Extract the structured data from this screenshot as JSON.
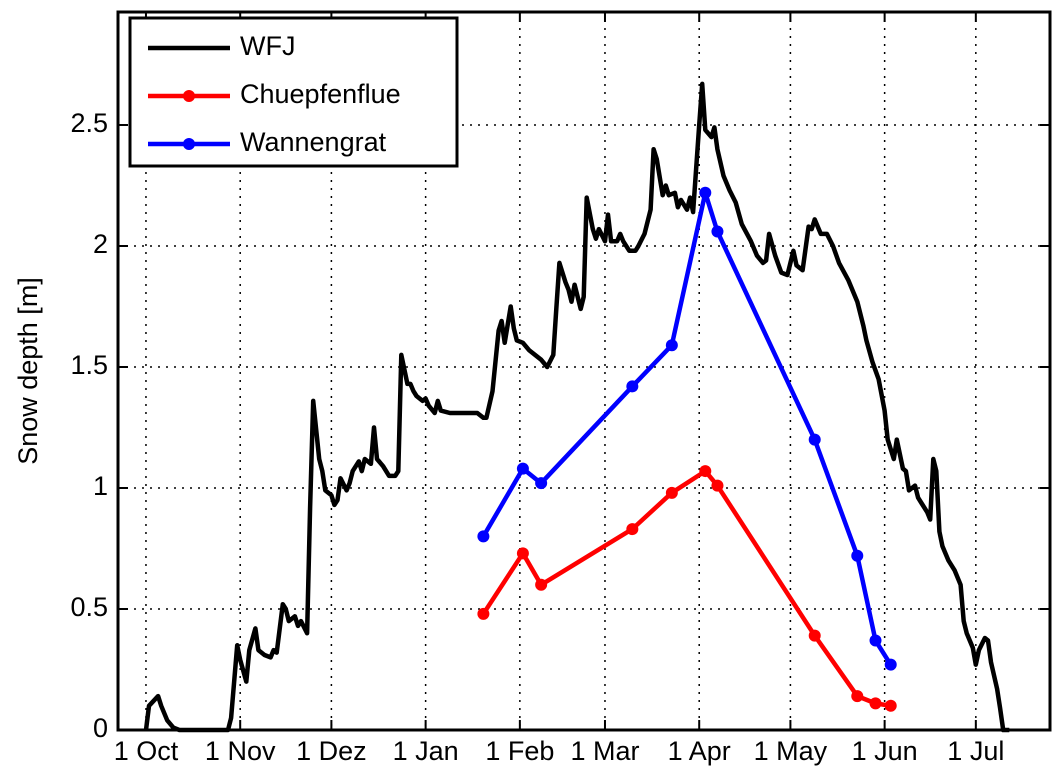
{
  "chart_data": {
    "type": "line",
    "y_label": "Snow depth [m]",
    "xlim": [
      -9.2,
      297.4
    ],
    "xticks": [
      {
        "value": 0,
        "label": "1 Oct"
      },
      {
        "value": 31,
        "label": "1 Nov"
      },
      {
        "value": 61,
        "label": "1 Dez"
      },
      {
        "value": 92,
        "label": "1 Jan"
      },
      {
        "value": 123,
        "label": "1 Feb"
      },
      {
        "value": 151,
        "label": "1 Mar"
      },
      {
        "value": 182,
        "label": "1 Apr"
      },
      {
        "value": 212,
        "label": "1 May"
      },
      {
        "value": 243,
        "label": "1 Jun"
      },
      {
        "value": 273,
        "label": "1 Jul"
      }
    ],
    "ylim": [
      0,
      2.967
    ],
    "yticks": [
      0,
      0.5,
      1,
      1.5,
      2,
      2.5
    ],
    "grid": true,
    "legend": "upper left",
    "series": [
      {
        "name": "WFJ",
        "color": "#000000",
        "markers": false,
        "x": [
          0,
          1,
          4,
          5,
          7,
          9,
          11,
          27,
          28,
          30,
          31,
          33,
          34,
          36,
          37,
          39,
          41,
          42,
          43,
          45,
          46,
          47,
          49,
          50,
          51,
          53,
          54,
          55,
          57,
          58,
          59,
          61,
          62,
          63,
          64,
          66,
          67,
          68,
          70,
          71,
          72,
          74,
          75,
          76,
          78,
          79,
          80,
          82,
          83,
          84,
          86,
          87,
          88,
          89,
          91,
          92,
          93,
          95,
          96,
          97,
          100,
          103,
          107,
          109,
          111,
          112,
          114,
          116,
          117,
          118,
          120,
          121,
          122,
          124,
          126,
          130,
          132,
          134,
          135,
          136,
          138,
          139,
          140,
          141,
          143,
          144,
          145,
          147,
          148,
          149,
          151,
          152,
          153,
          155,
          156,
          157,
          159,
          161,
          162,
          164,
          166,
          167,
          168,
          170,
          171,
          172,
          174,
          175,
          176,
          178,
          179,
          180,
          182,
          183,
          184,
          186,
          187,
          188,
          190,
          192,
          194,
          196,
          199,
          201,
          203,
          204,
          205,
          207,
          209,
          211,
          212,
          213,
          214,
          216,
          218,
          219,
          220,
          222,
          224,
          226,
          228,
          231,
          234,
          236,
          237,
          239,
          241,
          243,
          244,
          246,
          247,
          249,
          250,
          251,
          253,
          254,
          255,
          257,
          258,
          259,
          260,
          261,
          262,
          264,
          266,
          268,
          269,
          270,
          272,
          273,
          274,
          276,
          277,
          278,
          280,
          281,
          282,
          284,
          290,
          291
        ],
        "values": [
          0,
          0.1,
          0.14,
          0.1,
          0.04,
          0.01,
          0,
          0,
          0.05,
          0.35,
          0.29,
          0.2,
          0.33,
          0.42,
          0.33,
          0.31,
          0.3,
          0.33,
          0.32,
          0.52,
          0.5,
          0.45,
          0.47,
          0.43,
          0.45,
          0.4,
          0.92,
          1.36,
          1.12,
          1.07,
          0.99,
          0.97,
          0.93,
          0.95,
          1.04,
          0.99,
          1.02,
          1.07,
          1.11,
          1.07,
          1.12,
          1.1,
          1.25,
          1.12,
          1.09,
          1.07,
          1.05,
          1.05,
          1.07,
          1.55,
          1.43,
          1.43,
          1.4,
          1.38,
          1.36,
          1.37,
          1.34,
          1.31,
          1.36,
          1.32,
          1.31,
          1.31,
          1.31,
          1.31,
          1.29,
          1.29,
          1.4,
          1.65,
          1.69,
          1.6,
          1.75,
          1.66,
          1.61,
          1.6,
          1.57,
          1.53,
          1.5,
          1.55,
          1.74,
          1.93,
          1.85,
          1.82,
          1.77,
          1.84,
          1.74,
          1.79,
          2.2,
          2.07,
          2.03,
          2.07,
          2.02,
          2.13,
          2.02,
          2.02,
          2.05,
          2.02,
          1.98,
          1.98,
          2.0,
          2.05,
          2.15,
          2.4,
          2.36,
          2.21,
          2.25,
          2.21,
          2.22,
          2.16,
          2.19,
          2.15,
          2.2,
          2.14,
          2.5,
          2.67,
          2.48,
          2.45,
          2.49,
          2.4,
          2.29,
          2.23,
          2.18,
          2.09,
          2.02,
          1.96,
          1.93,
          1.94,
          2.05,
          1.96,
          1.89,
          1.88,
          1.93,
          1.98,
          1.92,
          1.9,
          2.08,
          2.07,
          2.11,
          2.05,
          2.05,
          2.0,
          1.93,
          1.86,
          1.77,
          1.67,
          1.61,
          1.52,
          1.45,
          1.32,
          1.2,
          1.12,
          1.2,
          1.08,
          1.07,
          0.99,
          1.01,
          0.96,
          0.94,
          0.9,
          0.87,
          1.12,
          1.07,
          0.82,
          0.76,
          0.7,
          0.66,
          0.6,
          0.45,
          0.4,
          0.34,
          0.27,
          0.33,
          0.38,
          0.37,
          0.28,
          0.17,
          0.09,
          0,
          0,
          null,
          0
        ]
      },
      {
        "name": "Chuepfenflue",
        "color": "#ff0000",
        "markers": true,
        "x": [
          111,
          124,
          130,
          160,
          173,
          184,
          188,
          220,
          234,
          240,
          245
        ],
        "values": [
          0.48,
          0.73,
          0.6,
          0.83,
          0.98,
          1.07,
          1.01,
          0.39,
          0.14,
          0.11,
          0.1
        ]
      },
      {
        "name": "Wannengrat",
        "color": "#0000ff",
        "markers": true,
        "x": [
          111,
          124,
          130,
          160,
          173,
          184,
          188,
          220,
          234,
          240,
          245
        ],
        "values": [
          0.8,
          1.08,
          1.02,
          1.42,
          1.59,
          2.22,
          2.06,
          1.2,
          0.72,
          0.37,
          0.27
        ]
      }
    ]
  }
}
